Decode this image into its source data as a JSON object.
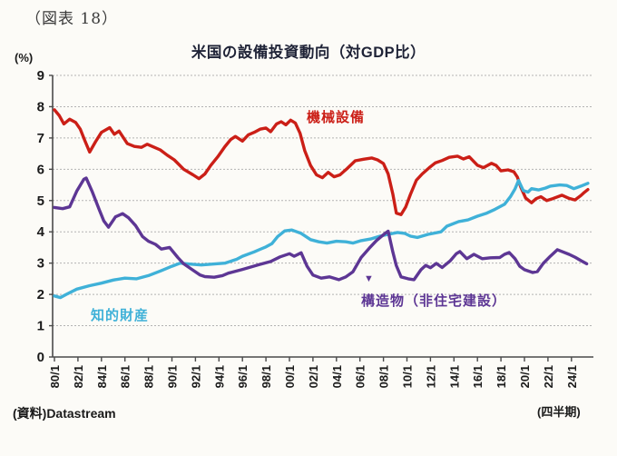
{
  "figure_label": "（図表 18）",
  "source": "(資料)Datastream",
  "chart_data": {
    "type": "line",
    "title": "米国の設備投資動向（対GDP比）",
    "unit_label": "(%)",
    "x_note": "(四半期)",
    "label_pointer": "▼",
    "ylim": [
      0,
      9
    ],
    "yticks": [
      0,
      1,
      2,
      3,
      4,
      5,
      6,
      7,
      8,
      9
    ],
    "xtick_labels": [
      "80/1",
      "82/1",
      "84/1",
      "86/1",
      "88/1",
      "90/1",
      "92/1",
      "94/1",
      "96/1",
      "98/1",
      "00/1",
      "02/1",
      "04/1",
      "06/1",
      "08/1",
      "10/1",
      "12/1",
      "14/1",
      "16/1",
      "18/1",
      "20/1",
      "22/1",
      "24/1"
    ],
    "xtick_years": [
      1980,
      1982,
      1984,
      1986,
      1988,
      1990,
      1992,
      1994,
      1996,
      1998,
      2000,
      2002,
      2004,
      2006,
      2008,
      2010,
      2012,
      2014,
      2016,
      2018,
      2020,
      2022,
      2024
    ],
    "grid": "horizontal-dashed",
    "legend_position": "inline-labels-on-chart",
    "colors": {
      "axis": "#4a4a4a",
      "grid": "#b3b3b3",
      "background": "#fcfbf7",
      "title": "#1f2337",
      "text": "#1a1a1a"
    },
    "series": [
      {
        "name": "機械設備",
        "color": "#cb1f17",
        "points": [
          [
            1980.0,
            7.9
          ],
          [
            1980.4,
            7.72
          ],
          [
            1980.8,
            7.45
          ],
          [
            1981.3,
            7.6
          ],
          [
            1981.8,
            7.5
          ],
          [
            1982.2,
            7.28
          ],
          [
            1982.6,
            6.9
          ],
          [
            1983.0,
            6.55
          ],
          [
            1983.5,
            6.88
          ],
          [
            1984.0,
            7.18
          ],
          [
            1984.7,
            7.33
          ],
          [
            1985.1,
            7.12
          ],
          [
            1985.5,
            7.22
          ],
          [
            1986.2,
            6.82
          ],
          [
            1986.8,
            6.73
          ],
          [
            1987.4,
            6.7
          ],
          [
            1987.9,
            6.8
          ],
          [
            1988.5,
            6.7
          ],
          [
            1989.0,
            6.62
          ],
          [
            1989.6,
            6.45
          ],
          [
            1990.2,
            6.3
          ],
          [
            1991.0,
            6.0
          ],
          [
            1991.8,
            5.82
          ],
          [
            1992.3,
            5.7
          ],
          [
            1992.8,
            5.85
          ],
          [
            1993.3,
            6.12
          ],
          [
            1993.9,
            6.4
          ],
          [
            1994.5,
            6.72
          ],
          [
            1995.0,
            6.95
          ],
          [
            1995.4,
            7.05
          ],
          [
            1996.0,
            6.9
          ],
          [
            1996.5,
            7.1
          ],
          [
            1997.0,
            7.18
          ],
          [
            1997.5,
            7.28
          ],
          [
            1998.0,
            7.32
          ],
          [
            1998.4,
            7.2
          ],
          [
            1998.9,
            7.45
          ],
          [
            1999.3,
            7.52
          ],
          [
            1999.7,
            7.42
          ],
          [
            2000.1,
            7.57
          ],
          [
            2000.5,
            7.48
          ],
          [
            2000.9,
            7.15
          ],
          [
            2001.3,
            6.6
          ],
          [
            2001.8,
            6.12
          ],
          [
            2002.3,
            5.82
          ],
          [
            2002.8,
            5.73
          ],
          [
            2003.3,
            5.9
          ],
          [
            2003.8,
            5.76
          ],
          [
            2004.3,
            5.82
          ],
          [
            2004.9,
            6.02
          ],
          [
            2005.6,
            6.27
          ],
          [
            2006.3,
            6.32
          ],
          [
            2007.0,
            6.36
          ],
          [
            2007.5,
            6.3
          ],
          [
            2008.0,
            6.18
          ],
          [
            2008.4,
            5.85
          ],
          [
            2008.8,
            5.2
          ],
          [
            2009.1,
            4.6
          ],
          [
            2009.5,
            4.55
          ],
          [
            2009.9,
            4.8
          ],
          [
            2010.3,
            5.2
          ],
          [
            2010.8,
            5.65
          ],
          [
            2011.3,
            5.85
          ],
          [
            2011.9,
            6.05
          ],
          [
            2012.4,
            6.2
          ],
          [
            2013.0,
            6.28
          ],
          [
            2013.6,
            6.38
          ],
          [
            2014.3,
            6.42
          ],
          [
            2014.8,
            6.33
          ],
          [
            2015.3,
            6.4
          ],
          [
            2016.0,
            6.13
          ],
          [
            2016.5,
            6.05
          ],
          [
            2017.2,
            6.19
          ],
          [
            2017.6,
            6.12
          ],
          [
            2018.0,
            5.95
          ],
          [
            2018.6,
            5.98
          ],
          [
            2019.1,
            5.92
          ],
          [
            2019.4,
            5.75
          ],
          [
            2019.7,
            5.42
          ],
          [
            2020.1,
            5.08
          ],
          [
            2020.6,
            4.93
          ],
          [
            2021.0,
            5.06
          ],
          [
            2021.4,
            5.12
          ],
          [
            2021.9,
            5.0
          ],
          [
            2022.4,
            5.06
          ],
          [
            2023.2,
            5.17
          ],
          [
            2023.8,
            5.07
          ],
          [
            2024.3,
            5.02
          ],
          [
            2024.8,
            5.16
          ],
          [
            2025.1,
            5.26
          ],
          [
            2025.4,
            5.35
          ]
        ]
      },
      {
        "name": "知的財産",
        "color": "#3fb1d8",
        "points": [
          [
            1980.0,
            1.95
          ],
          [
            1980.5,
            1.9
          ],
          [
            1981.0,
            2.0
          ],
          [
            1981.9,
            2.17
          ],
          [
            1983.0,
            2.28
          ],
          [
            1984.0,
            2.36
          ],
          [
            1985.0,
            2.46
          ],
          [
            1986.0,
            2.52
          ],
          [
            1987.0,
            2.5
          ],
          [
            1988.0,
            2.6
          ],
          [
            1989.1,
            2.76
          ],
          [
            1990.0,
            2.9
          ],
          [
            1990.7,
            3.0
          ],
          [
            1991.5,
            2.97
          ],
          [
            1992.5,
            2.94
          ],
          [
            1993.5,
            2.97
          ],
          [
            1994.5,
            3.0
          ],
          [
            1995.5,
            3.12
          ],
          [
            1996.0,
            3.22
          ],
          [
            1997.0,
            3.36
          ],
          [
            1997.5,
            3.44
          ],
          [
            1998.0,
            3.52
          ],
          [
            1998.5,
            3.62
          ],
          [
            1999.0,
            3.85
          ],
          [
            1999.6,
            4.03
          ],
          [
            2000.2,
            4.06
          ],
          [
            2001.0,
            3.95
          ],
          [
            2001.8,
            3.75
          ],
          [
            2002.5,
            3.68
          ],
          [
            2003.2,
            3.64
          ],
          [
            2004.0,
            3.7
          ],
          [
            2004.8,
            3.68
          ],
          [
            2005.4,
            3.64
          ],
          [
            2006.1,
            3.72
          ],
          [
            2006.9,
            3.77
          ],
          [
            2007.7,
            3.86
          ],
          [
            2008.4,
            3.92
          ],
          [
            2009.2,
            3.98
          ],
          [
            2009.8,
            3.95
          ],
          [
            2010.3,
            3.86
          ],
          [
            2010.9,
            3.82
          ],
          [
            2011.8,
            3.92
          ],
          [
            2012.9,
            4.0
          ],
          [
            2013.4,
            4.18
          ],
          [
            2014.4,
            4.33
          ],
          [
            2015.2,
            4.38
          ],
          [
            2016.0,
            4.5
          ],
          [
            2016.8,
            4.6
          ],
          [
            2017.5,
            4.72
          ],
          [
            2018.3,
            4.88
          ],
          [
            2018.8,
            5.12
          ],
          [
            2019.2,
            5.37
          ],
          [
            2019.5,
            5.64
          ],
          [
            2019.9,
            5.32
          ],
          [
            2020.3,
            5.27
          ],
          [
            2020.6,
            5.38
          ],
          [
            2021.2,
            5.34
          ],
          [
            2021.8,
            5.4
          ],
          [
            2022.2,
            5.46
          ],
          [
            2023.0,
            5.5
          ],
          [
            2023.6,
            5.48
          ],
          [
            2024.2,
            5.38
          ],
          [
            2024.8,
            5.46
          ],
          [
            2025.4,
            5.55
          ]
        ]
      },
      {
        "name": "構造物（非住宅建設）",
        "color": "#5d3694",
        "points": [
          [
            1980.0,
            4.78
          ],
          [
            1980.7,
            4.74
          ],
          [
            1981.3,
            4.8
          ],
          [
            1981.9,
            5.3
          ],
          [
            1982.5,
            5.68
          ],
          [
            1982.7,
            5.72
          ],
          [
            1983.2,
            5.3
          ],
          [
            1983.8,
            4.72
          ],
          [
            1984.2,
            4.35
          ],
          [
            1984.6,
            4.15
          ],
          [
            1985.2,
            4.48
          ],
          [
            1985.8,
            4.58
          ],
          [
            1986.3,
            4.45
          ],
          [
            1986.9,
            4.2
          ],
          [
            1987.5,
            3.85
          ],
          [
            1988.0,
            3.7
          ],
          [
            1988.6,
            3.6
          ],
          [
            1989.1,
            3.45
          ],
          [
            1989.8,
            3.5
          ],
          [
            1990.5,
            3.18
          ],
          [
            1991.0,
            2.98
          ],
          [
            1991.7,
            2.8
          ],
          [
            1992.4,
            2.62
          ],
          [
            1992.8,
            2.57
          ],
          [
            1993.6,
            2.55
          ],
          [
            1994.3,
            2.6
          ],
          [
            1994.8,
            2.68
          ],
          [
            1996.0,
            2.8
          ],
          [
            1997.4,
            2.95
          ],
          [
            1998.4,
            3.05
          ],
          [
            1999.2,
            3.2
          ],
          [
            2000.0,
            3.3
          ],
          [
            2000.4,
            3.22
          ],
          [
            2001.0,
            3.33
          ],
          [
            2001.5,
            2.9
          ],
          [
            2002.0,
            2.62
          ],
          [
            2002.7,
            2.52
          ],
          [
            2003.4,
            2.56
          ],
          [
            2004.2,
            2.47
          ],
          [
            2004.8,
            2.56
          ],
          [
            2005.4,
            2.72
          ],
          [
            2006.1,
            3.18
          ],
          [
            2006.8,
            3.48
          ],
          [
            2007.4,
            3.72
          ],
          [
            2008.1,
            3.94
          ],
          [
            2008.4,
            4.02
          ],
          [
            2008.8,
            3.35
          ],
          [
            2009.1,
            2.92
          ],
          [
            2009.5,
            2.56
          ],
          [
            2010.1,
            2.5
          ],
          [
            2010.6,
            2.47
          ],
          [
            2011.2,
            2.79
          ],
          [
            2011.6,
            2.93
          ],
          [
            2012.0,
            2.85
          ],
          [
            2012.5,
            2.99
          ],
          [
            2013.0,
            2.86
          ],
          [
            2013.7,
            3.08
          ],
          [
            2014.2,
            3.3
          ],
          [
            2014.5,
            3.37
          ],
          [
            2015.1,
            3.14
          ],
          [
            2015.7,
            3.28
          ],
          [
            2016.4,
            3.14
          ],
          [
            2017.1,
            3.17
          ],
          [
            2017.9,
            3.18
          ],
          [
            2018.3,
            3.28
          ],
          [
            2018.7,
            3.34
          ],
          [
            2019.2,
            3.14
          ],
          [
            2019.6,
            2.9
          ],
          [
            2020.0,
            2.79
          ],
          [
            2020.7,
            2.7
          ],
          [
            2021.1,
            2.73
          ],
          [
            2021.6,
            2.99
          ],
          [
            2022.2,
            3.22
          ],
          [
            2022.8,
            3.43
          ],
          [
            2023.2,
            3.37
          ],
          [
            2023.8,
            3.28
          ],
          [
            2024.3,
            3.19
          ],
          [
            2024.8,
            3.08
          ],
          [
            2025.3,
            2.98
          ]
        ]
      }
    ]
  }
}
